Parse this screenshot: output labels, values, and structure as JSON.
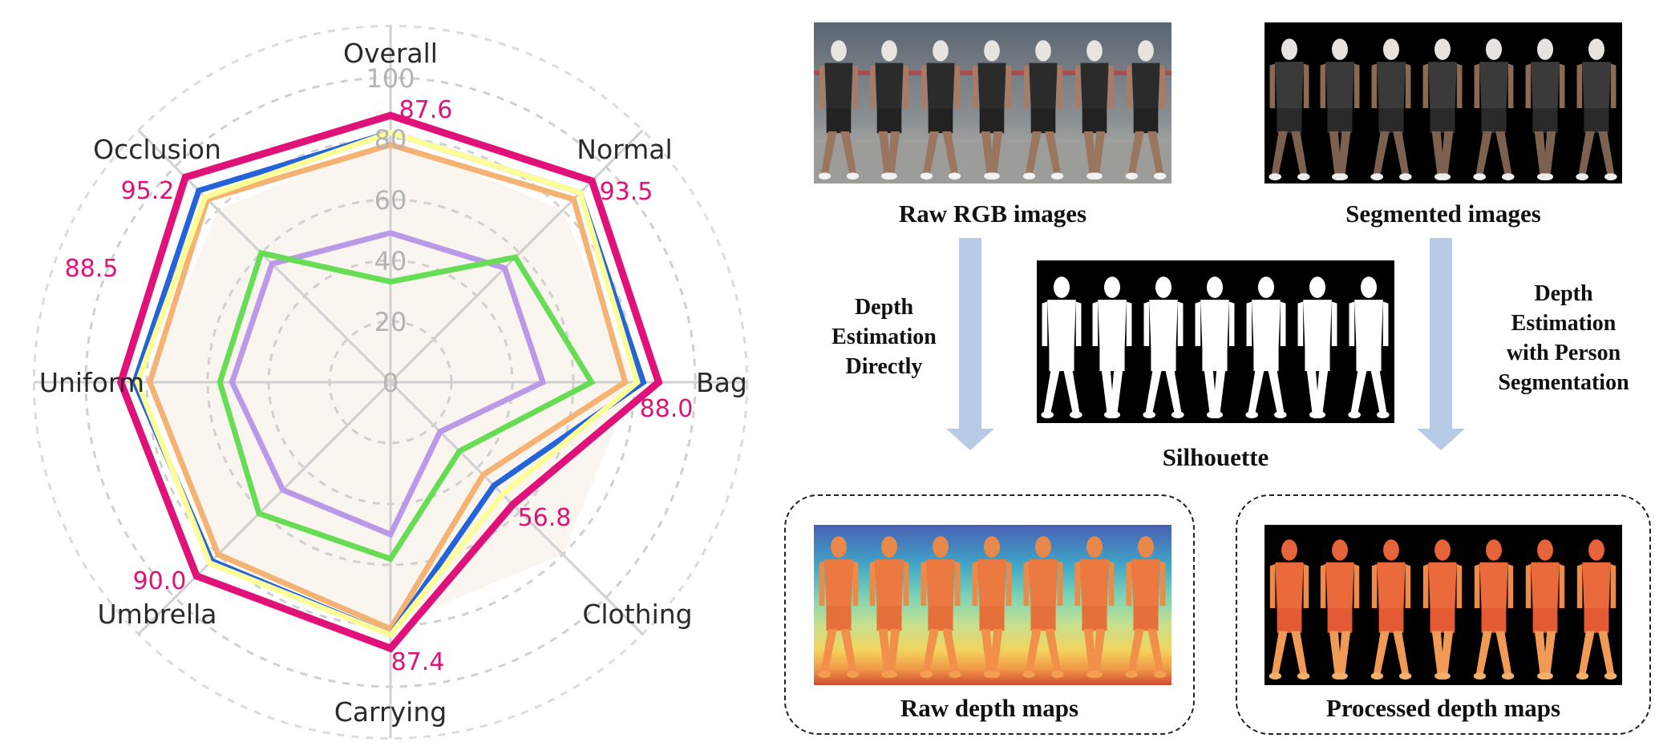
{
  "chart_data": {
    "type": "radar",
    "axes": [
      "Overall",
      "Normal",
      "Bag",
      "Clothing",
      "Carrying",
      "Umbrella",
      "Uniform",
      "Occlusion"
    ],
    "radial_ticks": [
      "0",
      "20",
      "40",
      "60",
      "80",
      "100"
    ],
    "rlim": [
      0,
      100
    ],
    "grid": true,
    "series": [
      {
        "color": "#e0127a",
        "values": [
          87.6,
          93.5,
          88.0,
          56.8,
          87.4,
          90.0,
          88.5,
          95.2
        ]
      },
      {
        "color": "#ffff99",
        "values": [
          82,
          88,
          81,
          52,
          83,
          84,
          83,
          86
        ]
      },
      {
        "color": "#2563d8",
        "values": [
          82,
          88,
          83,
          48,
          83,
          83,
          84,
          89
        ]
      },
      {
        "color": "#f6b272",
        "values": [
          78,
          85,
          77,
          43,
          81,
          80,
          79,
          85
        ]
      },
      {
        "color": "#66dd55",
        "values": [
          33,
          58,
          66,
          32,
          58,
          61,
          56,
          60
        ]
      },
      {
        "color": "#b999e8",
        "values": [
          49,
          53,
          50,
          23,
          50,
          50,
          52,
          55
        ]
      }
    ],
    "value_labels": [
      "87.6",
      "93.5",
      "88.0",
      "56.8",
      "87.4",
      "90.0",
      "88.5",
      "95.2"
    ]
  },
  "diagram": {
    "raw_rgb_caption": "Raw RGB images",
    "segmented_caption": "Segmented images",
    "silhouette_caption": "Silhouette",
    "raw_depth_caption": "Raw depth maps",
    "processed_depth_caption": "Processed depth maps",
    "left_arrow_label": [
      "Depth",
      "Estimation",
      "Directly"
    ],
    "right_arrow_label": [
      "Depth",
      "Estimation",
      "with Person",
      "Segmentation"
    ],
    "arrow_color": "#b8cbe6"
  }
}
